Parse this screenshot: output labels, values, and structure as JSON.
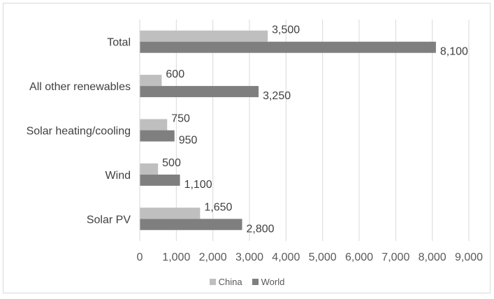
{
  "chart_data": {
    "type": "bar",
    "orientation": "horizontal",
    "categories": [
      "Total",
      "All other renewables",
      "Solar heating/cooling",
      "Wind",
      "Solar PV"
    ],
    "series": [
      {
        "name": "China",
        "values": [
          3500,
          600,
          750,
          500,
          1650
        ],
        "color": "#bfbfbf"
      },
      {
        "name": "World",
        "values": [
          8100,
          3250,
          950,
          1100,
          2800
        ],
        "color": "#7f7f7f"
      }
    ],
    "value_labels": {
      "China": [
        "3,500",
        "600",
        "750",
        "500",
        "1,650"
      ],
      "World": [
        "8,100",
        "3,250",
        "950",
        "1,100",
        "2,800"
      ]
    },
    "xlim": [
      0,
      9000
    ],
    "xticks": [
      "0",
      "1,000",
      "2,000",
      "3,000",
      "4,000",
      "5,000",
      "6,000",
      "7,000",
      "8,000",
      "9,000"
    ],
    "grid": true,
    "legend": "bottom",
    "title": "",
    "xlabel": "",
    "ylabel": ""
  }
}
